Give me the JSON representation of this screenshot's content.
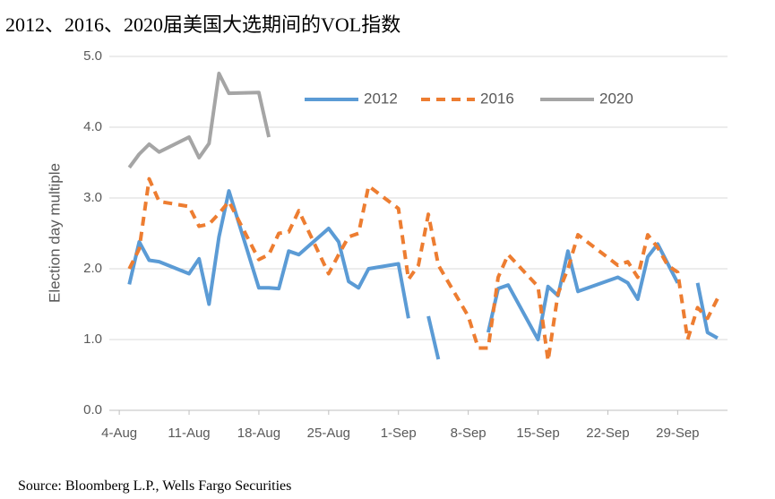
{
  "chart_data": {
    "type": "line",
    "title": "2012、2016、2020届美国大选期间的VOL指数",
    "y_label": "Election day multiple",
    "source": "Source: Bloomberg L.P., Wells Fargo Securities",
    "xlim": [
      -1,
      61
    ],
    "xticks": [
      {
        "value": 0,
        "label": "4-Aug"
      },
      {
        "value": 7,
        "label": "11-Aug"
      },
      {
        "value": 14,
        "label": "18-Aug"
      },
      {
        "value": 21,
        "label": "25-Aug"
      },
      {
        "value": 28,
        "label": "1-Sep"
      },
      {
        "value": 35,
        "label": "8-Sep"
      },
      {
        "value": 42,
        "label": "15-Sep"
      },
      {
        "value": 49,
        "label": "22-Sep"
      },
      {
        "value": 56,
        "label": "29-Sep"
      }
    ],
    "ylim": [
      0,
      5
    ],
    "yticks": [
      {
        "value": 0,
        "label": "0.0"
      },
      {
        "value": 1,
        "label": "1.0"
      },
      {
        "value": 2,
        "label": "2.0"
      },
      {
        "value": 3,
        "label": "3.0"
      },
      {
        "value": 4,
        "label": "4.0"
      },
      {
        "value": 5,
        "label": "5.0"
      }
    ],
    "grid": true,
    "series": [
      {
        "name": "2012",
        "color": "#5b9bd5",
        "dash": false,
        "x": [
          1,
          2,
          3,
          4,
          7,
          8,
          9,
          10,
          11,
          14,
          15,
          16,
          17,
          18,
          21,
          22,
          23,
          24,
          25,
          28,
          29,
          30,
          31,
          32,
          33,
          37,
          38,
          39,
          42,
          43,
          44,
          45,
          46,
          50,
          51,
          52,
          53,
          54,
          56,
          57,
          58,
          59,
          60
        ],
        "values": [
          1.78,
          2.38,
          2.12,
          2.1,
          1.93,
          2.14,
          1.5,
          2.45,
          3.1,
          1.73,
          1.73,
          1.72,
          2.25,
          2.2,
          2.57,
          2.38,
          1.82,
          1.73,
          2.0,
          2.07,
          1.3,
          null,
          1.33,
          0.72,
          null,
          1.1,
          1.72,
          1.77,
          1.0,
          1.75,
          1.62,
          2.25,
          1.68,
          1.88,
          1.8,
          1.57,
          2.17,
          2.35,
          1.8,
          null,
          1.8,
          1.1,
          1.02
        ]
      },
      {
        "name": "2016",
        "color": "#ed7d31",
        "dash": true,
        "x": [
          1,
          2,
          3,
          4,
          7,
          8,
          9,
          10,
          11,
          14,
          15,
          16,
          17,
          18,
          21,
          22,
          23,
          24,
          25,
          28,
          29,
          30,
          31,
          32,
          35,
          36,
          37,
          38,
          39,
          42,
          43,
          44,
          45,
          46,
          50,
          51,
          52,
          53,
          54,
          55,
          56,
          57,
          58,
          59,
          60
        ],
        "values": [
          2.0,
          2.28,
          3.27,
          2.95,
          2.88,
          2.6,
          2.63,
          2.78,
          2.95,
          2.13,
          2.2,
          2.5,
          2.52,
          2.82,
          1.93,
          2.2,
          2.45,
          2.5,
          3.17,
          2.85,
          1.85,
          2.05,
          2.77,
          2.05,
          1.33,
          0.88,
          0.88,
          1.88,
          2.2,
          1.75,
          0.7,
          1.65,
          2.0,
          2.48,
          2.05,
          2.1,
          1.88,
          2.48,
          2.3,
          2.05,
          1.95,
          1.0,
          1.45,
          1.3,
          1.58
        ]
      },
      {
        "name": "2020",
        "color": "#a5a5a5",
        "dash": false,
        "x": [
          1,
          2,
          3,
          4,
          7,
          8,
          9,
          10,
          11,
          14,
          15
        ],
        "values": [
          3.43,
          3.62,
          3.76,
          3.65,
          3.86,
          3.57,
          3.77,
          4.76,
          4.48,
          4.49,
          3.86
        ]
      }
    ]
  }
}
